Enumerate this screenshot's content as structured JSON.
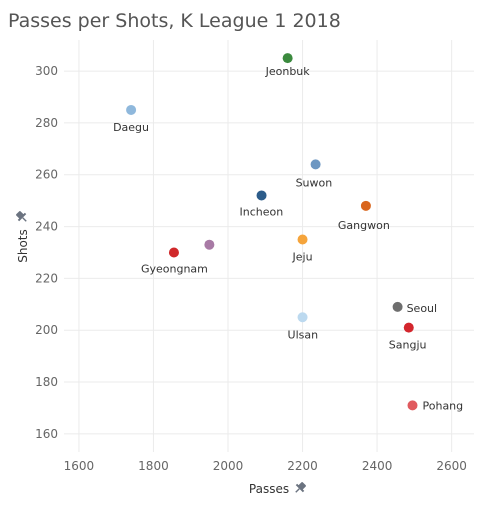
{
  "chart_data": {
    "type": "scatter",
    "title": "Passes per Shots, K League 1 2018",
    "xlabel": "Passes",
    "ylabel": "Shots",
    "xlim": [
      1560,
      2660
    ],
    "ylim": [
      153,
      312
    ],
    "x_ticks": [
      1600,
      1800,
      2000,
      2200,
      2400,
      2600
    ],
    "y_ticks": [
      160,
      180,
      200,
      220,
      240,
      260,
      280,
      300
    ],
    "grid": true,
    "points": [
      {
        "label": "Jeonbuk",
        "x": 2160,
        "y": 305,
        "color": "#3b8a3e"
      },
      {
        "label": "Daegu",
        "x": 1740,
        "y": 285,
        "color": "#8fb8dc"
      },
      {
        "label": "Suwon",
        "x": 2235,
        "y": 264,
        "color": "#6d97c2"
      },
      {
        "label": "Incheon",
        "x": 2090,
        "y": 252,
        "color": "#2c5c8a"
      },
      {
        "label": "Gangwon",
        "x": 2370,
        "y": 248,
        "color": "#d9651c"
      },
      {
        "label": "Jeju",
        "x": 2200,
        "y": 235,
        "color": "#f5a43b"
      },
      {
        "label": "",
        "x": 1950,
        "y": 233,
        "color": "#a87aa5"
      },
      {
        "label": "Gyeongnam",
        "x": 1855,
        "y": 230,
        "color": "#d0292b"
      },
      {
        "label": "Seoul",
        "x": 2455,
        "y": 209,
        "color": "#6e6e6e"
      },
      {
        "label": "Ulsan",
        "x": 2200,
        "y": 205,
        "color": "#bcd9ef"
      },
      {
        "label": "Sangju",
        "x": 2485,
        "y": 201,
        "color": "#d3262d"
      },
      {
        "label": "Pohang",
        "x": 2495,
        "y": 171,
        "color": "#e05a5e"
      }
    ]
  }
}
